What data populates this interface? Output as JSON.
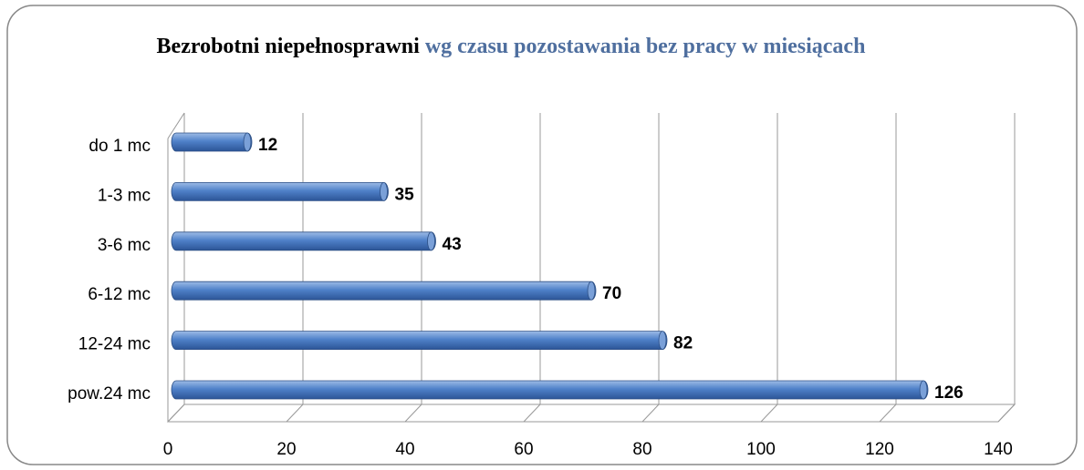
{
  "chart_data": {
    "type": "bar",
    "orientation": "horizontal",
    "title": "Bezrobotni niepełnosprawni",
    "subtitle": "wg czasu pozostawania bez pracy w miesiącach",
    "categories": [
      "do 1 mc",
      "1-3 mc",
      "3-6 mc",
      "6-12 mc",
      "12-24 mc",
      "pow.24 mc"
    ],
    "values": [
      12,
      35,
      43,
      70,
      82,
      126
    ],
    "color": "#4f81c9",
    "xlim": [
      0,
      140
    ],
    "xticks": [
      0,
      20,
      40,
      60,
      80,
      100,
      120,
      140
    ],
    "grid": true
  }
}
